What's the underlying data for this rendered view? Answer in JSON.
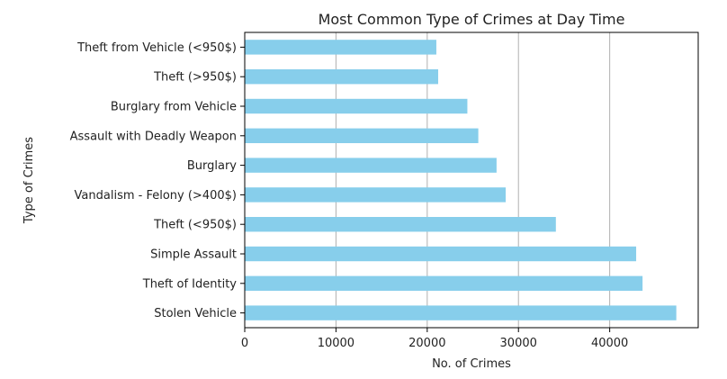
{
  "chart_data": {
    "type": "bar",
    "orientation": "horizontal",
    "title": "Most Common Type of Crimes at Day Time",
    "xlabel": "No. of Crimes",
    "ylabel": "Type of Crimes",
    "categories": [
      "Stolen Vehicle",
      "Theft of Identity",
      "Simple Assault",
      "Theft (<950$)",
      "Vandalism - Felony (>400$)",
      "Burglary",
      "Assault with Deadly Weapon",
      "Burglary from Vehicle",
      "Theft (>950$)",
      "Theft from Vehicle (<950$)"
    ],
    "values": [
      47300,
      43600,
      42900,
      34100,
      28600,
      27600,
      25600,
      24400,
      21200,
      21000
    ],
    "xlim": [
      0,
      49700
    ],
    "xticks": [
      0,
      10000,
      20000,
      30000,
      40000
    ],
    "xtick_labels": [
      "0",
      "10000",
      "20000",
      "30000",
      "40000"
    ],
    "grid": "x",
    "colors": {
      "bar": "#87ceeb",
      "grid": "#b0b0b0",
      "axis": "#000000"
    }
  }
}
